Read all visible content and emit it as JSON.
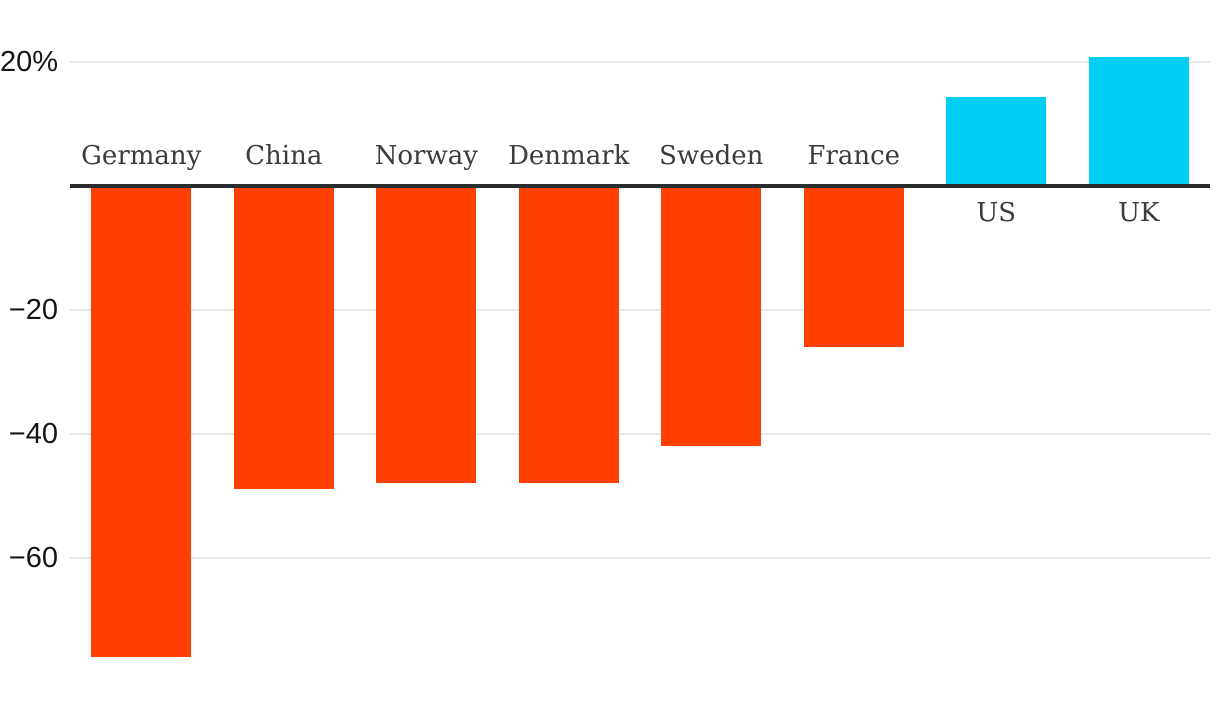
{
  "chart_data": {
    "type": "bar",
    "categories": [
      "Germany",
      "China",
      "Norway",
      "Denmark",
      "Sweden",
      "France",
      "US",
      "UK"
    ],
    "values": [
      -76,
      -49,
      -48,
      -48,
      -42,
      -26,
      14.3,
      20.7
    ],
    "unit": "%",
    "title": "",
    "xlabel": "",
    "ylabel": "",
    "ylim": [
      -80,
      22
    ],
    "yticks": [
      {
        "value": 20,
        "label": "20%"
      },
      {
        "value": -20,
        "label": "−20"
      },
      {
        "value": -40,
        "label": "−40"
      },
      {
        "value": -60,
        "label": "−60"
      }
    ],
    "grid": true,
    "legend": "none",
    "colors": {
      "negative_bar": "#FF4003",
      "positive_bar": "#00CEF5",
      "gridline": "#E9E9E9",
      "zero_axis": "#2A2D30",
      "tick_label": "#151515",
      "category_label": "#3C3C3C",
      "background": "#FFFFFF"
    },
    "label_placement": "negative bars labeled above axis, positive bars labeled below axis"
  }
}
